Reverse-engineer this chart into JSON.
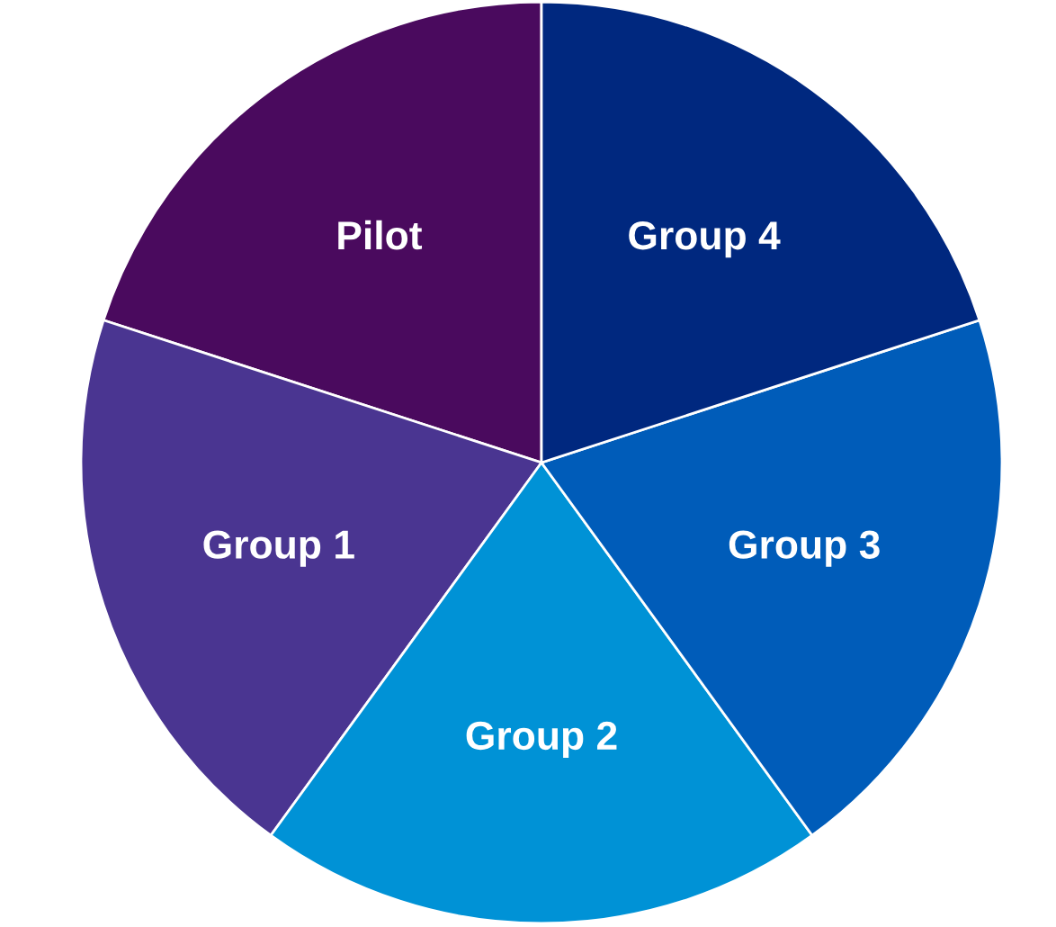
{
  "chart_data": {
    "type": "pie",
    "categories": [
      "Pilot",
      "Group 1",
      "Group 2",
      "Group 3",
      "Group 4"
    ],
    "values": [
      20,
      20,
      20,
      20,
      20
    ],
    "colors": [
      "#4a0a5e",
      "#4a3591",
      "#0092d6",
      "#005cb9",
      "#00287f"
    ]
  }
}
